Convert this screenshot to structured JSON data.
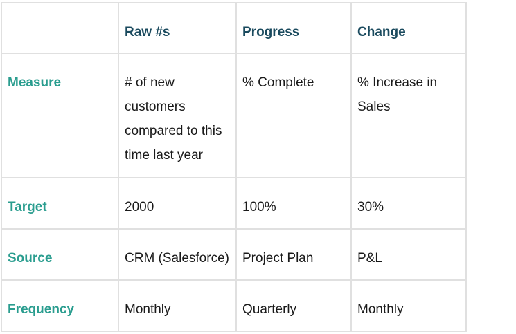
{
  "table": {
    "columns": [
      "",
      "Raw #s",
      "Progress",
      "Change"
    ],
    "rows": [
      {
        "label": "Measure",
        "cells": [
          "# of new customers compared to this time last year",
          "% Complete",
          "% Increase in Sales"
        ]
      },
      {
        "label": "Target",
        "cells": [
          "2000",
          "100%",
          "30%"
        ]
      },
      {
        "label": "Source",
        "cells": [
          "CRM (Salesforce)",
          "Project Plan",
          "P&L"
        ]
      },
      {
        "label": "Frequency",
        "cells": [
          "Monthly",
          "Quarterly",
          "Monthly"
        ]
      }
    ]
  }
}
